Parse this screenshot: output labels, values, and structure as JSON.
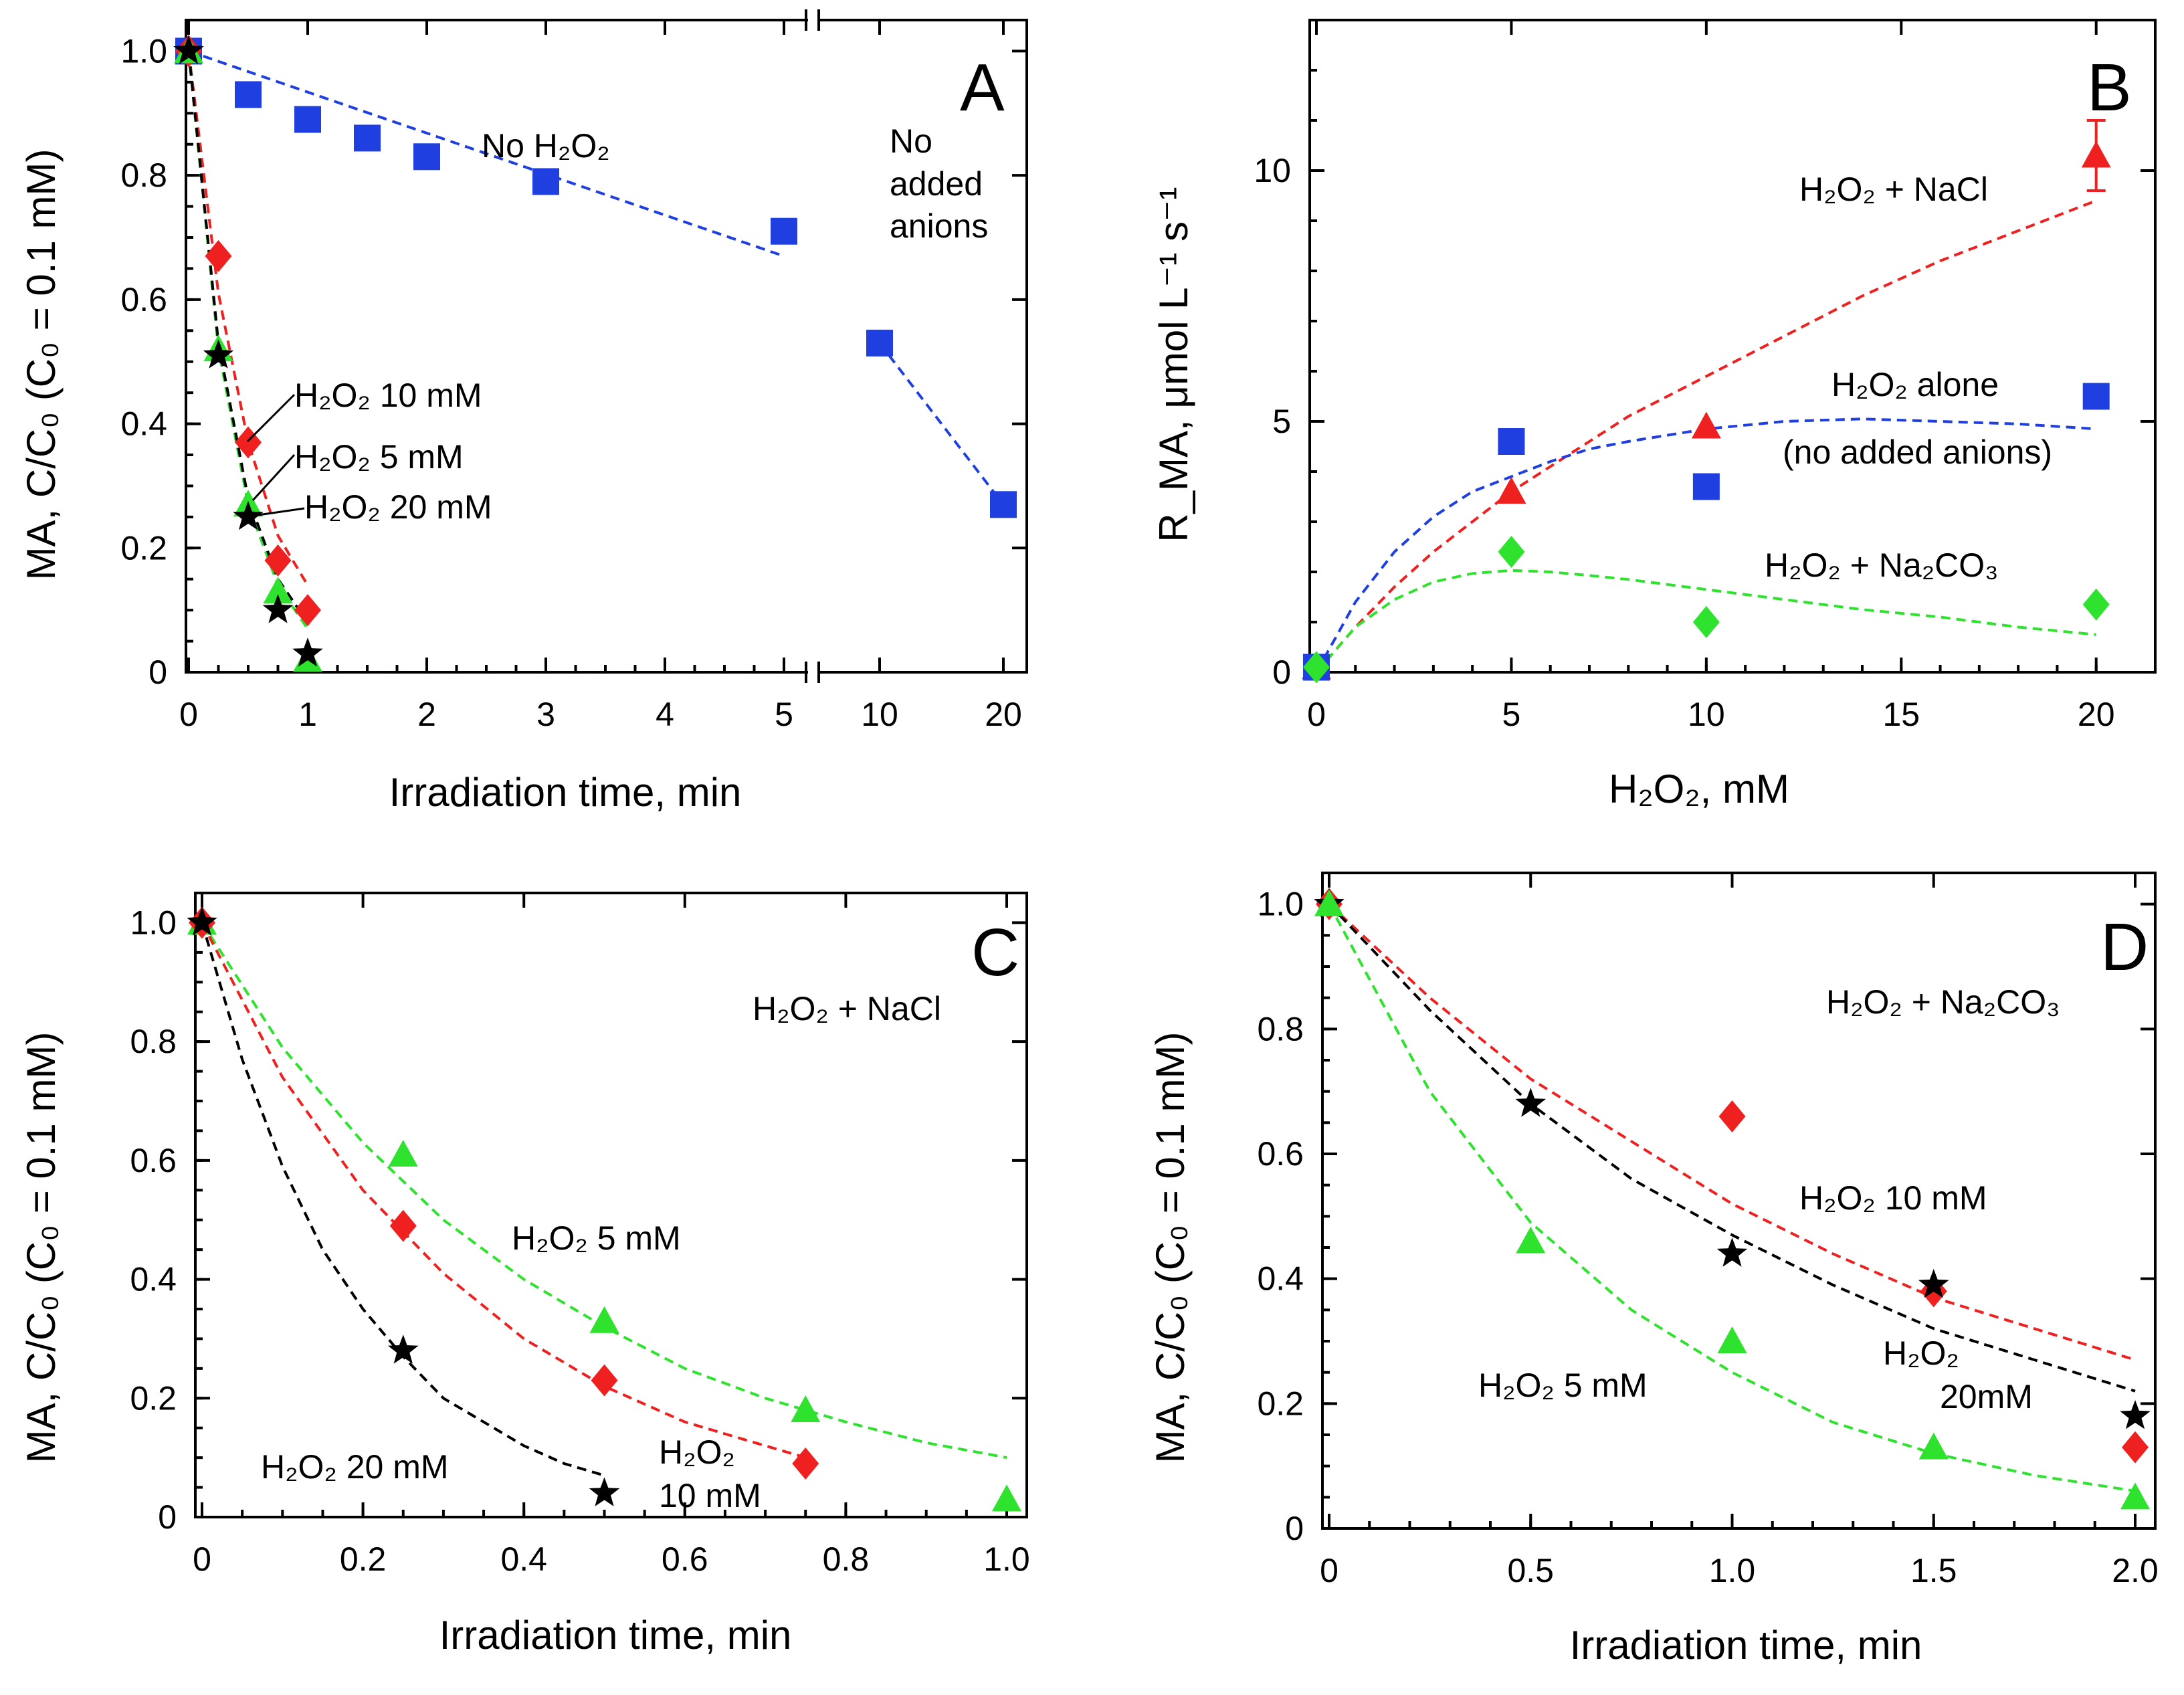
{
  "chart_data": [
    {
      "panel": "A",
      "type": "scatter",
      "xlabel": "Irradiation time, min",
      "ylabel": "MA, C/C₀ (C₀ = 0.1 mM)",
      "ylim": [
        0,
        1.05
      ],
      "x_break": "broken axis between 5 and 10",
      "xticks": [
        "0",
        "1",
        "2",
        "3",
        "4",
        "5",
        "10",
        "20"
      ],
      "yticks": [
        "0",
        "0.2",
        "0.4",
        "0.6",
        "0.8",
        "1.0"
      ],
      "series": [
        {
          "name": "No H2O2",
          "color": "#1f3fe0",
          "marker": "square",
          "x": [
            0,
            0.5,
            1,
            1.5,
            2,
            3,
            5,
            10,
            20
          ],
          "y": [
            1.0,
            0.93,
            0.89,
            0.86,
            0.83,
            0.79,
            0.71,
            0.53,
            0.27
          ]
        },
        {
          "name": "H2O2 10 mM",
          "color": "#ee2020",
          "marker": "diamond",
          "x": [
            0,
            0.25,
            0.5,
            0.75,
            1.0
          ],
          "y": [
            1.0,
            0.67,
            0.37,
            0.18,
            0.1
          ]
        },
        {
          "name": "H2O2 5 mM",
          "color": "#2ee22e",
          "marker": "triangle",
          "x": [
            0,
            0.25,
            0.5,
            0.75,
            1.0
          ],
          "y": [
            1.0,
            0.52,
            0.27,
            0.13,
            0.02
          ]
        },
        {
          "name": "H2O2 20 mM",
          "color": "#000000",
          "marker": "star",
          "x": [
            0,
            0.25,
            0.5,
            0.75,
            1.0
          ],
          "y": [
            1.0,
            0.51,
            0.25,
            0.1,
            0.03
          ]
        }
      ],
      "fits": [
        {
          "series": "No H2O2",
          "x": [
            0,
            5
          ],
          "y": [
            1.0,
            0.67
          ]
        },
        {
          "series": "No H2O2 (10–20)",
          "x": [
            10,
            20
          ],
          "y": [
            0.53,
            0.27
          ]
        },
        {
          "series": "H2O2 10 mM",
          "x": [
            0,
            0.25,
            0.5,
            0.75,
            1.0
          ],
          "y": [
            1.0,
            0.61,
            0.37,
            0.22,
            0.14
          ]
        },
        {
          "series": "H2O2 5 mM",
          "x": [
            0,
            0.25,
            0.5,
            0.75,
            1.0
          ],
          "y": [
            1.0,
            0.52,
            0.27,
            0.14,
            0.07
          ]
        },
        {
          "series": "H2O2 20 mM",
          "x": [
            0,
            0.25,
            0.5,
            0.75,
            1.0
          ],
          "y": [
            1.0,
            0.53,
            0.28,
            0.15,
            0.08
          ]
        }
      ],
      "annotations": {
        "letter": "A",
        "no_h2o2": "No H₂O₂",
        "no_added_1": "No",
        "no_added_2": "added",
        "no_added_3": "anions",
        "h10": "H₂O₂  10 mM",
        "h5": "H₂O₂  5 mM",
        "h20": "H₂O₂  20 mM"
      }
    },
    {
      "panel": "B",
      "type": "scatter",
      "xlabel": "H₂O₂, mM",
      "ylabel": "R_MA, μmol L⁻¹ s⁻¹",
      "xlim": [
        0,
        21
      ],
      "ylim": [
        0,
        13
      ],
      "xticks": [
        "0",
        "5",
        "10",
        "15",
        "20"
      ],
      "yticks": [
        "0",
        "5",
        "10"
      ],
      "series": [
        {
          "name": "H2O2 + NaCl",
          "color": "#ee2020",
          "marker": "triangle",
          "x": [
            0,
            5,
            10,
            20
          ],
          "y": [
            0.1,
            3.6,
            4.9,
            10.3
          ],
          "err_at_20": 0.7
        },
        {
          "name": "H2O2 alone (no added anions)",
          "color": "#1f3fe0",
          "marker": "square",
          "x": [
            0,
            5,
            10,
            20
          ],
          "y": [
            0.1,
            4.6,
            3.7,
            5.5
          ]
        },
        {
          "name": "H2O2 + Na2CO3",
          "color": "#2ee22e",
          "marker": "diamond",
          "x": [
            0,
            5,
            10,
            20
          ],
          "y": [
            0.1,
            2.4,
            1.0,
            1.35
          ]
        }
      ],
      "fits": [
        {
          "series": "H2O2 + NaCl",
          "x": [
            0,
            1,
            2,
            3,
            4,
            5,
            6,
            7,
            8,
            9,
            10,
            12,
            14,
            16,
            18,
            20
          ],
          "y": [
            0,
            0.9,
            1.7,
            2.4,
            3.0,
            3.6,
            4.1,
            4.6,
            5.1,
            5.5,
            5.9,
            6.7,
            7.5,
            8.2,
            8.8,
            9.4
          ]
        },
        {
          "series": "H2O2 alone",
          "x": [
            0,
            1,
            2,
            3,
            4,
            5,
            6,
            7,
            8,
            10,
            12,
            14,
            16,
            18,
            20
          ],
          "y": [
            0,
            1.4,
            2.4,
            3.1,
            3.6,
            3.9,
            4.2,
            4.45,
            4.6,
            4.85,
            5.0,
            5.05,
            5.0,
            4.95,
            4.85
          ]
        },
        {
          "series": "H2O2 + Na2CO3",
          "x": [
            0,
            1,
            2,
            3,
            4,
            5,
            6,
            7,
            8,
            10,
            12,
            14,
            16,
            18,
            20
          ],
          "y": [
            0,
            0.9,
            1.45,
            1.8,
            1.97,
            2.03,
            2.0,
            1.93,
            1.85,
            1.65,
            1.45,
            1.25,
            1.1,
            0.9,
            0.75
          ]
        }
      ],
      "annotations": {
        "letter": "B",
        "nacl": "H₂O₂  +  NaCl",
        "alone_1": "H₂O₂  alone",
        "alone_2": "(no added anions)",
        "na2co3": "H₂O₂  +  Na₂CO₃"
      }
    },
    {
      "panel": "C",
      "type": "scatter",
      "xlabel": "Irradiation time, min",
      "ylabel": "MA, C/C₀ (C₀ = 0.1 mM)",
      "xlim": [
        0,
        1.0
      ],
      "ylim": [
        0,
        1.05
      ],
      "xticks": [
        "0",
        "0.2",
        "0.4",
        "0.6",
        "0.8",
        "1.0"
      ],
      "yticks": [
        "0",
        "0.2",
        "0.4",
        "0.6",
        "0.8",
        "1.0"
      ],
      "series": [
        {
          "name": "H2O2 5 mM",
          "color": "#2ee22e",
          "marker": "triangle",
          "x": [
            0,
            0.25,
            0.5,
            0.75,
            1.0
          ],
          "y": [
            1.0,
            0.61,
            0.33,
            0.18,
            0.03
          ]
        },
        {
          "name": "H2O2 10 mM",
          "color": "#ee2020",
          "marker": "diamond",
          "x": [
            0,
            0.25,
            0.5,
            0.75
          ],
          "y": [
            1.0,
            0.49,
            0.23,
            0.09
          ]
        },
        {
          "name": "H2O2 20 mM",
          "color": "#000000",
          "marker": "star",
          "x": [
            0,
            0.25,
            0.5
          ],
          "y": [
            1.0,
            0.28,
            0.04
          ]
        }
      ],
      "fits": [
        {
          "series": "H2O2 5 mM",
          "x": [
            0,
            0.1,
            0.2,
            0.3,
            0.4,
            0.5,
            0.6,
            0.7,
            0.8,
            0.9,
            1.0
          ],
          "y": [
            1.0,
            0.79,
            0.63,
            0.5,
            0.4,
            0.32,
            0.25,
            0.2,
            0.16,
            0.125,
            0.1
          ]
        },
        {
          "series": "H2O2 10 mM",
          "x": [
            0,
            0.1,
            0.2,
            0.3,
            0.4,
            0.5,
            0.6,
            0.7,
            0.75
          ],
          "y": [
            1.0,
            0.74,
            0.55,
            0.41,
            0.3,
            0.22,
            0.16,
            0.12,
            0.1
          ]
        },
        {
          "series": "H2O2 20 mM",
          "x": [
            0,
            0.05,
            0.1,
            0.15,
            0.2,
            0.25,
            0.3,
            0.35,
            0.4,
            0.45,
            0.5
          ],
          "y": [
            1.0,
            0.77,
            0.59,
            0.45,
            0.35,
            0.27,
            0.2,
            0.16,
            0.12,
            0.09,
            0.07
          ]
        }
      ],
      "annotations": {
        "letter": "C",
        "header": "H₂O₂  +  NaCl",
        "h5": "H₂O₂  5 mM",
        "h20": "H₂O₂  20 mM",
        "h10_1": "H₂O₂",
        "h10_2": "10 mM"
      }
    },
    {
      "panel": "D",
      "type": "scatter",
      "xlabel": "Irradiation time, min",
      "ylabel": "MA, C/C₀ (C₀ = 0.1 mM)",
      "xlim": [
        0,
        2.0
      ],
      "ylim": [
        0,
        1.05
      ],
      "xticks": [
        "0",
        "0.5",
        "1.0",
        "1.5",
        "2.0"
      ],
      "yticks": [
        "0",
        "0.2",
        "0.4",
        "0.6",
        "0.8",
        "1.0"
      ],
      "series": [
        {
          "name": "H2O2 10 mM",
          "color": "#ee2020",
          "marker": "diamond",
          "x": [
            0,
            1.0,
            1.5,
            2.0
          ],
          "y": [
            1.0,
            0.66,
            0.38,
            0.13
          ]
        },
        {
          "name": "H2O2 20 mM",
          "color": "#000000",
          "marker": "star",
          "x": [
            0,
            0.5,
            1.0,
            1.5,
            2.0
          ],
          "y": [
            1.0,
            0.68,
            0.44,
            0.39,
            0.18
          ]
        },
        {
          "name": "H2O2 5 mM",
          "color": "#2ee22e",
          "marker": "triangle",
          "x": [
            0,
            0.5,
            1.0,
            1.5,
            2.0
          ],
          "y": [
            1.0,
            0.46,
            0.3,
            0.13,
            0.05
          ]
        }
      ],
      "fits": [
        {
          "series": "H2O2 10 mM",
          "x": [
            0,
            0.25,
            0.5,
            0.75,
            1.0,
            1.25,
            1.5,
            1.75,
            2.0
          ],
          "y": [
            1.0,
            0.85,
            0.72,
            0.62,
            0.52,
            0.44,
            0.37,
            0.32,
            0.27
          ]
        },
        {
          "series": "H2O2 20 mM",
          "x": [
            0,
            0.25,
            0.5,
            0.75,
            1.0,
            1.25,
            1.5,
            1.75,
            2.0
          ],
          "y": [
            1.0,
            0.83,
            0.68,
            0.56,
            0.47,
            0.39,
            0.32,
            0.27,
            0.22
          ]
        },
        {
          "series": "H2O2 5 mM",
          "x": [
            0,
            0.25,
            0.5,
            0.75,
            1.0,
            1.25,
            1.5,
            1.75,
            2.0
          ],
          "y": [
            1.0,
            0.7,
            0.49,
            0.35,
            0.25,
            0.17,
            0.12,
            0.085,
            0.06
          ]
        }
      ],
      "annotations": {
        "letter": "D",
        "header": "H₂O₂  +  Na₂CO₃",
        "h10": "H₂O₂  10 mM",
        "h5": "H₂O₂  5 mM",
        "h20_1": "H₂O₂",
        "h20_2": "20mM"
      }
    }
  ]
}
